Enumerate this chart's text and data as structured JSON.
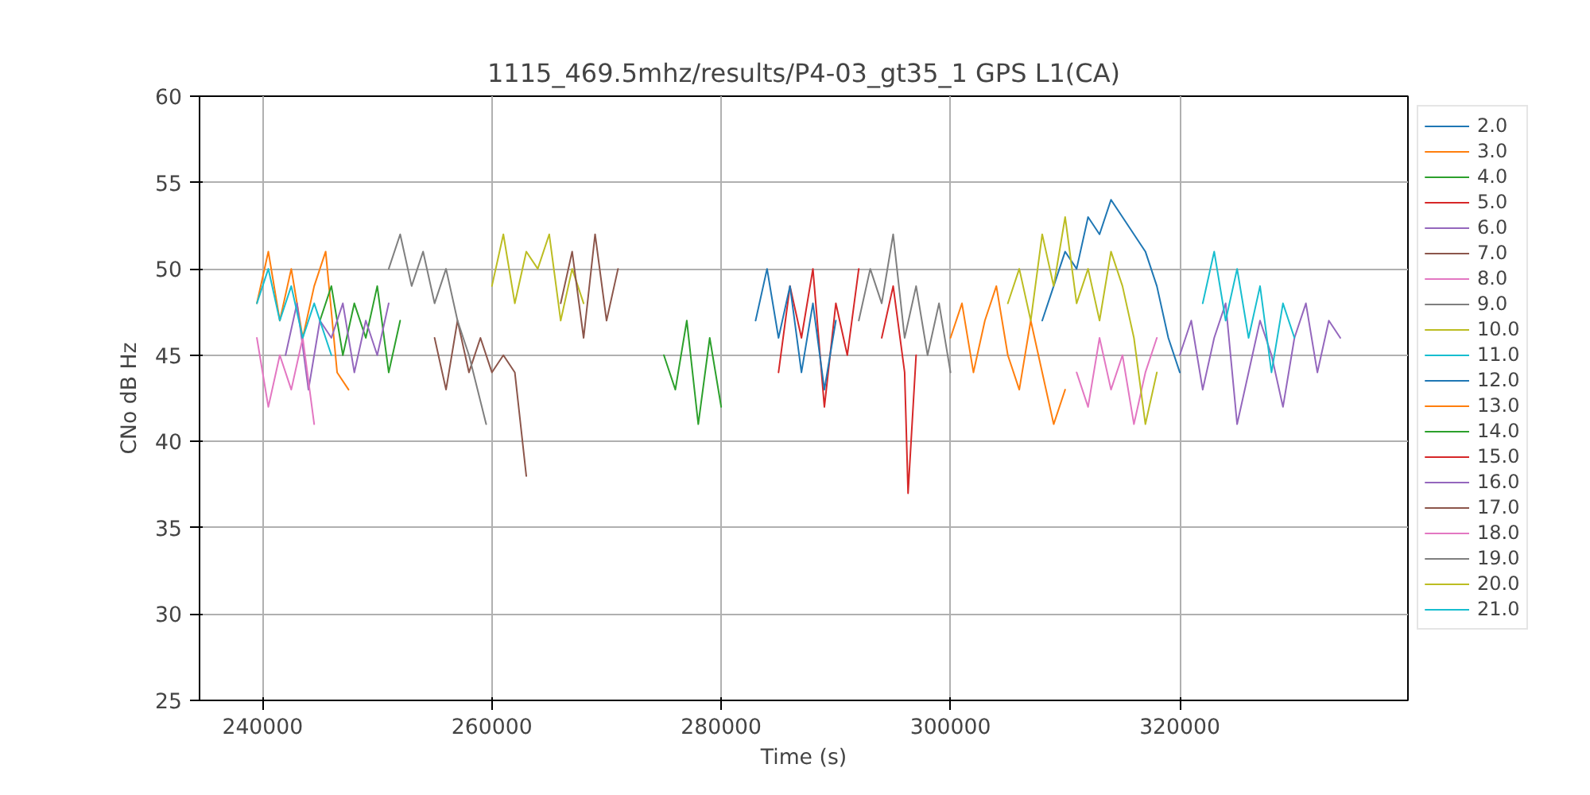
{
  "chart_data": {
    "type": "line",
    "title": "1115_469.5mhz/results/P4-03_gt35_1 GPS L1(CA)",
    "xlabel": "Time (s)",
    "ylabel": "CNo dB Hz",
    "xlim": [
      234500,
      339900
    ],
    "ylim": [
      25,
      60
    ],
    "xticks": [
      240000,
      260000,
      280000,
      300000,
      320000
    ],
    "yticks": [
      25,
      30,
      35,
      40,
      45,
      50,
      55,
      60
    ],
    "grid": true,
    "legend": "right",
    "series": [
      {
        "name": "2.0",
        "color": "#1f77b4",
        "x": [
          308000,
          309000,
          310000,
          311000,
          312000,
          313000,
          314000,
          315000,
          316000,
          317000,
          318000,
          319000,
          320000
        ],
        "values": [
          47,
          49,
          51,
          50,
          53,
          52,
          54,
          53,
          52,
          51,
          49,
          46,
          44
        ]
      },
      {
        "name": "3.0",
        "color": "#ff7f0e",
        "x": [
          239500,
          240500,
          241500,
          242500,
          243500,
          244500,
          245500,
          246500,
          247500
        ],
        "values": [
          48,
          51,
          47,
          50,
          46,
          49,
          51,
          44,
          43
        ]
      },
      {
        "name": "4.0",
        "color": "#2ca02c",
        "x": [
          245000,
          246000,
          247000,
          248000,
          249000,
          250000,
          251000,
          252000
        ],
        "values": [
          47,
          49,
          45,
          48,
          46,
          49,
          44,
          47
        ]
      },
      {
        "name": "5.0",
        "color": "#d62728",
        "x": [
          285000,
          286000,
          287000,
          288000,
          289000,
          290000,
          291000,
          292000
        ],
        "values": [
          44,
          49,
          46,
          50,
          42,
          48,
          45,
          50
        ]
      },
      {
        "name": "6.0",
        "color": "#9467bd",
        "x": [
          242000,
          243000,
          244000,
          245000,
          246000,
          247000,
          248000,
          249000,
          250000,
          251000
        ],
        "values": [
          45,
          48,
          43,
          47,
          46,
          48,
          44,
          47,
          45,
          48
        ]
      },
      {
        "name": "7.0",
        "color": "#8c564b",
        "x": [
          255000,
          256000,
          257000,
          258000,
          259000,
          260000,
          261000,
          262000,
          263000
        ],
        "values": [
          46,
          43,
          47,
          44,
          46,
          44,
          45,
          44,
          38
        ]
      },
      {
        "name": "8.0",
        "color": "#e377c2",
        "x": [
          239500,
          240500,
          241500,
          242500,
          243500,
          244500
        ],
        "values": [
          46,
          42,
          45,
          43,
          46,
          41
        ]
      },
      {
        "name": "9.0",
        "color": "#7f7f7f",
        "x": [
          251000,
          252000,
          253000,
          254000,
          255000,
          256000,
          257000,
          258000,
          259500
        ],
        "values": [
          50,
          52,
          49,
          51,
          48,
          50,
          47,
          45,
          41
        ]
      },
      {
        "name": "10.0",
        "color": "#bcbd22",
        "x": [
          260000,
          261000,
          262000,
          263000,
          264000,
          265000,
          266000,
          267000,
          268000
        ],
        "values": [
          49,
          52,
          48,
          51,
          50,
          52,
          47,
          50,
          48
        ]
      },
      {
        "name": "11.0",
        "color": "#17becf",
        "x": [
          239500,
          240500,
          241500,
          242500,
          243500,
          244500,
          246000
        ],
        "values": [
          48,
          50,
          47,
          49,
          46,
          48,
          45
        ]
      },
      {
        "name": "12.0",
        "color": "#1f77b4",
        "x": [
          283000,
          284000,
          285000,
          286000,
          287000,
          288000,
          289000,
          290000
        ],
        "values": [
          47,
          50,
          46,
          49,
          44,
          48,
          43,
          47
        ]
      },
      {
        "name": "13.0",
        "color": "#ff7f0e",
        "x": [
          300000,
          301000,
          302000,
          303000,
          304000,
          305000,
          306000,
          307000,
          308000,
          309000,
          310000
        ],
        "values": [
          46,
          48,
          44,
          47,
          49,
          45,
          43,
          47,
          44,
          41,
          43
        ]
      },
      {
        "name": "14.0",
        "color": "#2ca02c",
        "x": [
          275000,
          276000,
          277000,
          278000,
          279000,
          280000
        ],
        "values": [
          45,
          43,
          47,
          41,
          46,
          42
        ]
      },
      {
        "name": "15.0",
        "color": "#d62728",
        "x": [
          294000,
          295000,
          296000,
          296300,
          297000
        ],
        "values": [
          46,
          49,
          44,
          37,
          45
        ]
      },
      {
        "name": "16.0",
        "color": "#9467bd",
        "x": [
          320000,
          321000,
          322000,
          323000,
          324000,
          325000,
          326000,
          327000,
          328000,
          329000,
          330000,
          331000,
          332000,
          333000,
          334000
        ],
        "values": [
          45,
          47,
          43,
          46,
          48,
          41,
          44,
          47,
          45,
          42,
          46,
          48,
          44,
          47,
          46
        ]
      },
      {
        "name": "17.0",
        "color": "#8c564b",
        "x": [
          266000,
          267000,
          268000,
          269000,
          270000,
          271000
        ],
        "values": [
          48,
          51,
          46,
          52,
          47,
          50
        ]
      },
      {
        "name": "18.0",
        "color": "#e377c2",
        "x": [
          311000,
          312000,
          313000,
          314000,
          315000,
          316000,
          317000,
          318000
        ],
        "values": [
          44,
          42,
          46,
          43,
          45,
          41,
          44,
          46
        ]
      },
      {
        "name": "19.0",
        "color": "#7f7f7f",
        "x": [
          292000,
          293000,
          294000,
          295000,
          296000,
          297000,
          298000,
          299000,
          300000
        ],
        "values": [
          47,
          50,
          48,
          52,
          46,
          49,
          45,
          48,
          44
        ]
      },
      {
        "name": "20.0",
        "color": "#bcbd22",
        "x": [
          305000,
          306000,
          307000,
          308000,
          309000,
          310000,
          311000,
          312000,
          313000,
          314000,
          315000,
          316000,
          317000,
          318000
        ],
        "values": [
          48,
          50,
          47,
          52,
          49,
          53,
          48,
          50,
          47,
          51,
          49,
          46,
          41,
          44
        ]
      },
      {
        "name": "21.0",
        "color": "#17becf",
        "x": [
          322000,
          323000,
          324000,
          325000,
          326000,
          327000,
          328000,
          329000,
          330000
        ],
        "values": [
          48,
          51,
          47,
          50,
          46,
          49,
          44,
          48,
          46
        ]
      }
    ]
  }
}
